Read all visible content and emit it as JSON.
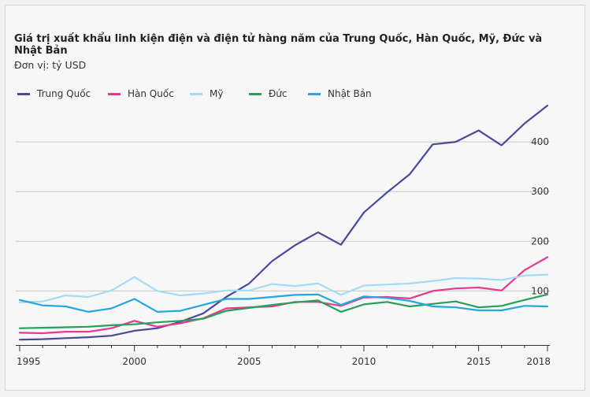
{
  "header": {
    "title": "Giá trị xuất khẩu linh kiện điện và điện tử hàng năm của Trung Quốc, Hàn Quốc, Mỹ, Đức và Nhật Bản",
    "subtitle": "Đơn vị: tỷ USD"
  },
  "chart_data": {
    "type": "line",
    "title": "Giá trị xuất khẩu linh kiện điện và điện tử hàng năm của Trung Quốc, Hàn Quốc, Mỹ, Đức và Nhật Bản",
    "subtitle": "Đơn vị: tỷ USD",
    "xlabel": "",
    "ylabel": "",
    "x": [
      1995,
      1996,
      1997,
      1998,
      1999,
      2000,
      2001,
      2002,
      2003,
      2004,
      2005,
      2006,
      2007,
      2008,
      2009,
      2010,
      2011,
      2012,
      2013,
      2014,
      2015,
      2016,
      2017,
      2018
    ],
    "xticks": [
      "1995",
      "2000",
      "2005",
      "2010",
      "2015",
      "2018"
    ],
    "yticks": [
      "100",
      "200",
      "300",
      "400"
    ],
    "ylim": [
      0,
      470
    ],
    "grid": true,
    "legend_position": "top-left",
    "series": [
      {
        "name": "Trung Quốc",
        "color": "#4b4a9a",
        "values": [
          2,
          3,
          5,
          7,
          10,
          20,
          25,
          38,
          55,
          88,
          115,
          160,
          192,
          218,
          193,
          258,
          298,
          335,
          395,
          400,
          423,
          393,
          437,
          473
        ]
      },
      {
        "name": "Hàn Quốc",
        "color": "#e8398f",
        "values": [
          16,
          15,
          18,
          18,
          25,
          40,
          28,
          35,
          45,
          65,
          67,
          69,
          78,
          78,
          70,
          87,
          88,
          85,
          100,
          105,
          107,
          101,
          142,
          168
        ]
      },
      {
        "name": "Mỹ",
        "color": "#a6dbf5",
        "values": [
          77,
          79,
          91,
          88,
          101,
          128,
          100,
          91,
          95,
          101,
          101,
          114,
          110,
          115,
          92,
          111,
          113,
          115,
          120,
          126,
          125,
          122,
          131,
          133
        ]
      },
      {
        "name": "Đức",
        "color": "#27a05a",
        "values": [
          25,
          26,
          27,
          28,
          31,
          33,
          37,
          40,
          44,
          60,
          66,
          72,
          77,
          81,
          58,
          73,
          78,
          69,
          74,
          79,
          67,
          70,
          82,
          93
        ]
      },
      {
        "name": "Nhật Bản",
        "color": "#25a6df",
        "values": [
          82,
          71,
          69,
          58,
          65,
          84,
          58,
          60,
          72,
          84,
          84,
          88,
          92,
          93,
          72,
          89,
          86,
          80,
          69,
          67,
          61,
          61,
          70,
          69
        ]
      }
    ]
  }
}
